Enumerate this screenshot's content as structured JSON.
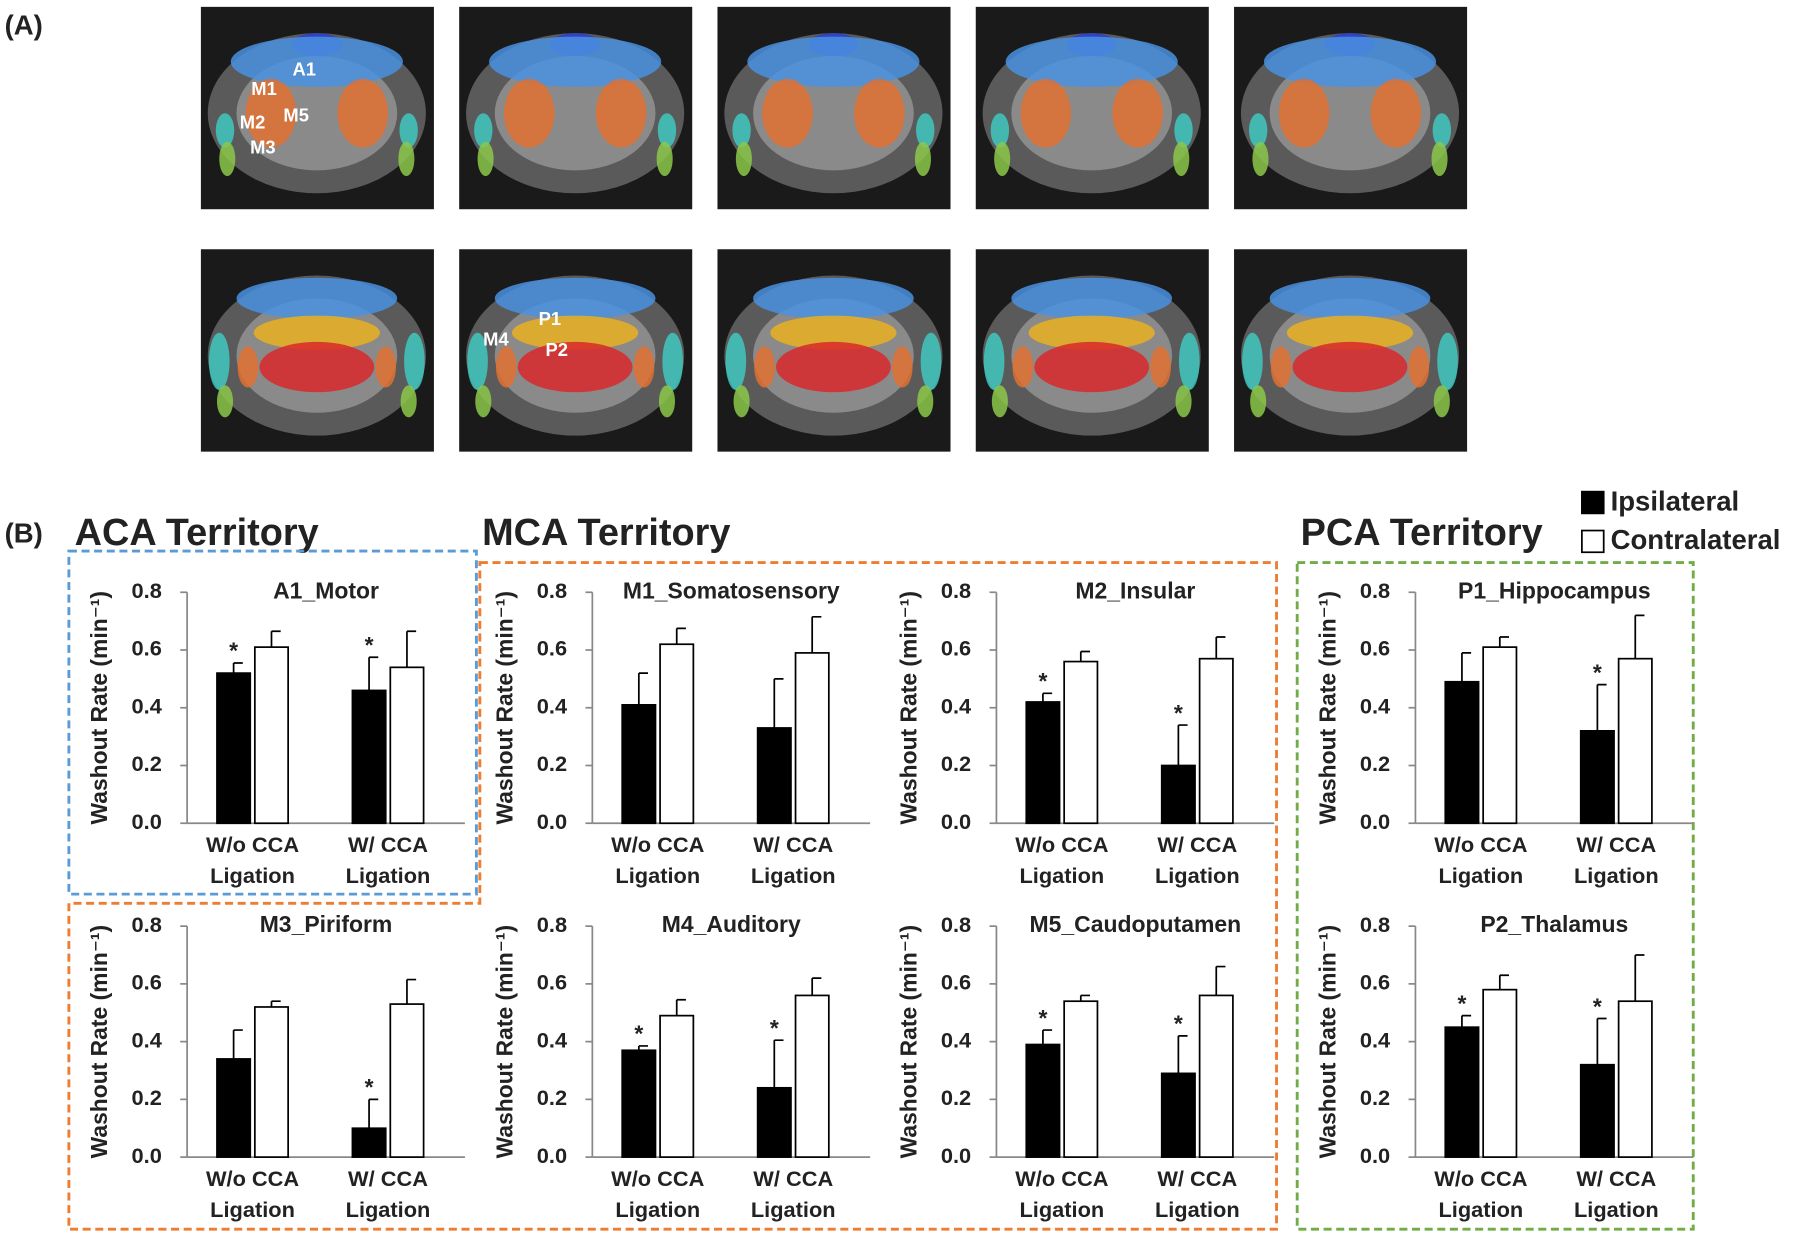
{
  "panel_labels": [
    "(A)",
    "(B)"
  ],
  "images": {
    "labels": [
      "A1",
      "M1",
      "M2",
      "M5",
      "M3",
      "P1",
      "P2",
      "M4"
    ]
  },
  "territories": [
    {
      "name": "ACA Territory",
      "color": "#5b9bd5"
    },
    {
      "name": "MCA Territory",
      "color": "#ed7d31"
    },
    {
      "name": "PCA Territory",
      "color": "#70ad47"
    }
  ],
  "chart_data": [
    {
      "type": "bar",
      "title": "A1_Motor",
      "ylabel": "Washout Rate (min⁻¹)",
      "categories": [
        "W/o CCA Ligation",
        "W/ CCA Ligation"
      ],
      "series": [
        {
          "name": "Ipsilateral",
          "color": "#000000",
          "values": [
            0.52,
            0.46
          ],
          "errors": [
            0.035,
            0.115
          ],
          "marks": [
            "*",
            "*"
          ]
        },
        {
          "name": "Contralateral",
          "color": "#ffffff",
          "values": [
            0.61,
            0.54
          ],
          "errors": [
            0.055,
            0.125
          ],
          "marks": [
            null,
            null
          ]
        }
      ],
      "ylim": [
        0,
        0.8
      ],
      "yticks": [
        {
          "value": 0,
          "label": "0.0"
        },
        {
          "value": 0.2,
          "label": "0.2"
        },
        {
          "value": 0.4,
          "label": "0.4"
        },
        {
          "value": 0.6,
          "label": "0.6"
        },
        {
          "value": 0.8,
          "label": "0.8"
        }
      ]
    },
    {
      "type": "bar",
      "title": "M1_Somatosensory",
      "ylabel": "Washout Rate (min⁻¹)",
      "categories": [
        "W/o CCA Ligation",
        "W/ CCA Ligation"
      ],
      "series": [
        {
          "name": "Ipsilateral",
          "color": "#000000",
          "values": [
            0.41,
            0.33
          ],
          "errors": [
            0.11,
            0.17
          ],
          "marks": [
            null,
            null
          ]
        },
        {
          "name": "Contralateral",
          "color": "#ffffff",
          "values": [
            0.62,
            0.59
          ],
          "errors": [
            0.055,
            0.125
          ],
          "marks": [
            null,
            null
          ]
        }
      ],
      "ylim": [
        0,
        0.8
      ],
      "yticks": [
        {
          "value": 0,
          "label": "0.0"
        },
        {
          "value": 0.2,
          "label": "0.2"
        },
        {
          "value": 0.4,
          "label": "0.4"
        },
        {
          "value": 0.6,
          "label": "0.6"
        },
        {
          "value": 0.8,
          "label": "0.8"
        }
      ]
    },
    {
      "type": "bar",
      "title": "M2_Insular",
      "ylabel": "Washout Rate (min⁻¹)",
      "categories": [
        "W/o CCA Ligation",
        "W/ CCA Ligation"
      ],
      "series": [
        {
          "name": "Ipsilateral",
          "color": "#000000",
          "values": [
            0.42,
            0.2
          ],
          "errors": [
            0.03,
            0.14
          ],
          "marks": [
            "*",
            "*"
          ]
        },
        {
          "name": "Contralateral",
          "color": "#ffffff",
          "values": [
            0.56,
            0.57
          ],
          "errors": [
            0.035,
            0.075
          ],
          "marks": [
            null,
            null
          ]
        }
      ],
      "ylim": [
        0,
        0.8
      ],
      "yticks": [
        {
          "value": 0,
          "label": "0.0"
        },
        {
          "value": 0.2,
          "label": "0.2"
        },
        {
          "value": 0.4,
          "label": "0.4"
        },
        {
          "value": 0.6,
          "label": "0.6"
        },
        {
          "value": 0.8,
          "label": "0.8"
        }
      ]
    },
    {
      "type": "bar",
      "title": "P1_Hippocampus",
      "ylabel": "Washout Rate (min⁻¹)",
      "categories": [
        "W/o CCA Ligation",
        "W/ CCA Ligation"
      ],
      "series": [
        {
          "name": "Ipsilateral",
          "color": "#000000",
          "values": [
            0.49,
            0.32
          ],
          "errors": [
            0.1,
            0.16
          ],
          "marks": [
            null,
            "*"
          ]
        },
        {
          "name": "Contralateral",
          "color": "#ffffff",
          "values": [
            0.61,
            0.57
          ],
          "errors": [
            0.035,
            0.15
          ],
          "marks": [
            null,
            null
          ]
        }
      ],
      "ylim": [
        0,
        0.8
      ],
      "yticks": [
        {
          "value": 0,
          "label": "0.0"
        },
        {
          "value": 0.2,
          "label": "0.2"
        },
        {
          "value": 0.4,
          "label": "0.4"
        },
        {
          "value": 0.6,
          "label": "0.6"
        },
        {
          "value": 0.8,
          "label": "0.8"
        }
      ]
    },
    {
      "type": "bar",
      "title": "M3_Piriform",
      "ylabel": "Washout Rate (min⁻¹)",
      "categories": [
        "W/o CCA Ligation",
        "W/ CCA Ligation"
      ],
      "series": [
        {
          "name": "Ipsilateral",
          "color": "#000000",
          "values": [
            0.34,
            0.1
          ],
          "errors": [
            0.1,
            0.1
          ],
          "marks": [
            null,
            "*"
          ]
        },
        {
          "name": "Contralateral",
          "color": "#ffffff",
          "values": [
            0.52,
            0.53
          ],
          "errors": [
            0.02,
            0.085
          ],
          "marks": [
            null,
            null
          ]
        }
      ],
      "ylim": [
        0,
        0.8
      ],
      "yticks": [
        {
          "value": 0,
          "label": "0.0"
        },
        {
          "value": 0.2,
          "label": "0.2"
        },
        {
          "value": 0.4,
          "label": "0.4"
        },
        {
          "value": 0.6,
          "label": "0.6"
        },
        {
          "value": 0.8,
          "label": "0.8"
        }
      ]
    },
    {
      "type": "bar",
      "title": "M4_Auditory",
      "ylabel": "Washout Rate (min⁻¹)",
      "categories": [
        "W/o CCA Ligation",
        "W/ CCA Ligation"
      ],
      "series": [
        {
          "name": "Ipsilateral",
          "color": "#000000",
          "values": [
            0.37,
            0.24
          ],
          "errors": [
            0.015,
            0.165
          ],
          "marks": [
            "*",
            "*"
          ]
        },
        {
          "name": "Contralateral",
          "color": "#ffffff",
          "values": [
            0.49,
            0.56
          ],
          "errors": [
            0.055,
            0.06
          ],
          "marks": [
            null,
            null
          ]
        }
      ],
      "ylim": [
        0,
        0.8
      ],
      "yticks": [
        {
          "value": 0,
          "label": "0.0"
        },
        {
          "value": 0.2,
          "label": "0.2"
        },
        {
          "value": 0.4,
          "label": "0.4"
        },
        {
          "value": 0.6,
          "label": "0.6"
        },
        {
          "value": 0.8,
          "label": "0.8"
        }
      ]
    },
    {
      "type": "bar",
      "title": "M5_Caudoputamen",
      "ylabel": "Washout Rate (min⁻¹)",
      "categories": [
        "W/o CCA Ligation",
        "W/ CCA Ligation"
      ],
      "series": [
        {
          "name": "Ipsilateral",
          "color": "#000000",
          "values": [
            0.39,
            0.29
          ],
          "errors": [
            0.05,
            0.13
          ],
          "marks": [
            "*",
            "*"
          ]
        },
        {
          "name": "Contralateral",
          "color": "#ffffff",
          "values": [
            0.54,
            0.56
          ],
          "errors": [
            0.02,
            0.1
          ],
          "marks": [
            null,
            null
          ]
        }
      ],
      "ylim": [
        0,
        0.8
      ],
      "yticks": [
        {
          "value": 0,
          "label": "0.0"
        },
        {
          "value": 0.2,
          "label": "0.2"
        },
        {
          "value": 0.4,
          "label": "0.4"
        },
        {
          "value": 0.6,
          "label": "0.6"
        },
        {
          "value": 0.8,
          "label": "0.8"
        }
      ]
    },
    {
      "type": "bar",
      "title": "P2_Thalamus",
      "ylabel": "Washout Rate (min⁻¹)",
      "categories": [
        "W/o CCA Ligation",
        "W/ CCA Ligation"
      ],
      "series": [
        {
          "name": "Ipsilateral",
          "color": "#000000",
          "values": [
            0.45,
            0.32
          ],
          "errors": [
            0.04,
            0.16
          ],
          "marks": [
            "*",
            "*"
          ]
        },
        {
          "name": "Contralateral",
          "color": "#ffffff",
          "values": [
            0.58,
            0.54
          ],
          "errors": [
            0.05,
            0.16
          ],
          "marks": [
            null,
            null
          ]
        }
      ],
      "ylim": [
        0,
        0.8
      ],
      "yticks": [
        {
          "value": 0,
          "label": "0.0"
        },
        {
          "value": 0.2,
          "label": "0.2"
        },
        {
          "value": 0.4,
          "label": "0.4"
        },
        {
          "value": 0.6,
          "label": "0.6"
        },
        {
          "value": 0.8,
          "label": "0.8"
        }
      ]
    }
  ]
}
